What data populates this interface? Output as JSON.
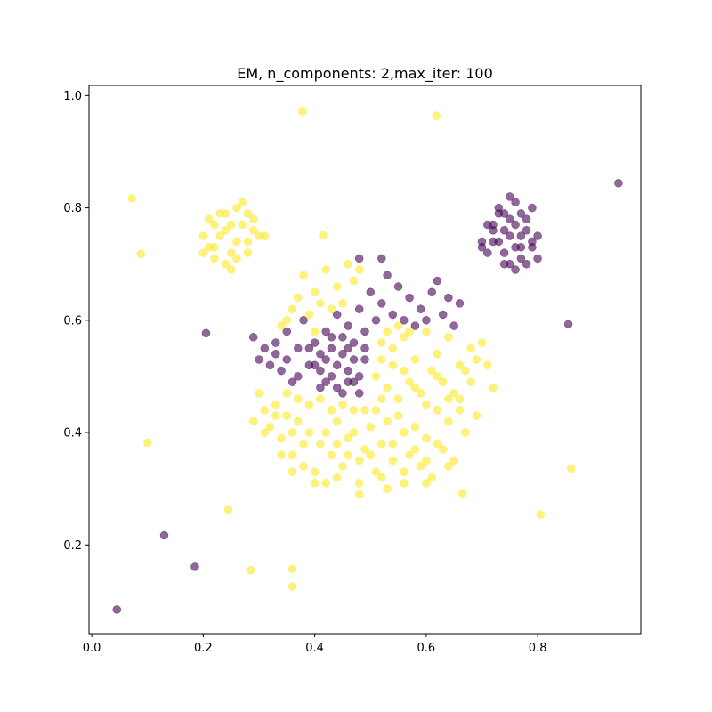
{
  "chart_data": {
    "type": "scatter",
    "title": "EM, n_components: 2,max_iter: 100",
    "xlabel": "",
    "ylabel": "",
    "xlim": [
      -0.005,
      0.985
    ],
    "ylim": [
      0.042,
      1.018
    ],
    "xticks": [
      0.0,
      0.2,
      0.4,
      0.6,
      0.8
    ],
    "xtick_labels": [
      "0.0",
      "0.2",
      "0.4",
      "0.6",
      "0.8"
    ],
    "yticks": [
      0.2,
      0.4,
      0.6,
      0.8,
      1.0
    ],
    "ytick_labels": [
      "0.2",
      "0.4",
      "0.6",
      "0.8",
      "1.0"
    ],
    "grid": false,
    "legend": "none",
    "point_alpha": 0.6,
    "series": [
      {
        "color": "#440154",
        "points": [
          [
            0.045,
            0.085
          ],
          [
            0.13,
            0.217
          ],
          [
            0.185,
            0.161
          ],
          [
            0.205,
            0.577
          ],
          [
            0.855,
            0.593
          ],
          [
            0.945,
            0.844
          ],
          [
            0.72,
            0.77
          ],
          [
            0.73,
            0.8
          ],
          [
            0.75,
            0.82
          ],
          [
            0.77,
            0.79
          ],
          [
            0.78,
            0.76
          ],
          [
            0.79,
            0.74
          ],
          [
            0.8,
            0.75
          ],
          [
            0.76,
            0.73
          ],
          [
            0.74,
            0.72
          ],
          [
            0.72,
            0.74
          ],
          [
            0.7,
            0.74
          ],
          [
            0.75,
            0.7
          ],
          [
            0.77,
            0.71
          ],
          [
            0.79,
            0.73
          ],
          [
            0.78,
            0.7
          ],
          [
            0.73,
            0.79
          ],
          [
            0.74,
            0.76
          ],
          [
            0.76,
            0.77
          ],
          [
            0.75,
            0.78
          ],
          [
            0.77,
            0.75
          ],
          [
            0.71,
            0.72
          ],
          [
            0.73,
            0.74
          ],
          [
            0.76,
            0.69
          ],
          [
            0.74,
            0.7
          ],
          [
            0.79,
            0.8
          ],
          [
            0.72,
            0.76
          ],
          [
            0.78,
            0.78
          ],
          [
            0.75,
            0.75
          ],
          [
            0.74,
            0.79
          ],
          [
            0.8,
            0.71
          ],
          [
            0.7,
            0.73
          ],
          [
            0.76,
            0.81
          ],
          [
            0.71,
            0.77
          ],
          [
            0.77,
            0.73
          ],
          [
            0.29,
            0.57
          ],
          [
            0.3,
            0.53
          ],
          [
            0.31,
            0.55
          ],
          [
            0.32,
            0.52
          ],
          [
            0.33,
            0.56
          ],
          [
            0.34,
            0.51
          ],
          [
            0.35,
            0.58
          ],
          [
            0.36,
            0.49
          ],
          [
            0.37,
            0.55
          ],
          [
            0.38,
            0.6
          ],
          [
            0.39,
            0.52
          ],
          [
            0.4,
            0.56
          ],
          [
            0.41,
            0.48
          ],
          [
            0.42,
            0.58
          ],
          [
            0.43,
            0.5
          ],
          [
            0.44,
            0.61
          ],
          [
            0.45,
            0.47
          ],
          [
            0.46,
            0.59
          ],
          [
            0.47,
            0.49
          ],
          [
            0.48,
            0.62
          ],
          [
            0.49,
            0.53
          ],
          [
            0.5,
            0.65
          ],
          [
            0.51,
            0.6
          ],
          [
            0.52,
            0.63
          ],
          [
            0.53,
            0.68
          ],
          [
            0.54,
            0.61
          ],
          [
            0.55,
            0.66
          ],
          [
            0.56,
            0.6
          ],
          [
            0.57,
            0.64
          ],
          [
            0.58,
            0.59
          ],
          [
            0.59,
            0.62
          ],
          [
            0.6,
            0.6
          ],
          [
            0.61,
            0.65
          ],
          [
            0.62,
            0.67
          ],
          [
            0.63,
            0.61
          ],
          [
            0.64,
            0.64
          ],
          [
            0.65,
            0.59
          ],
          [
            0.66,
            0.63
          ],
          [
            0.52,
            0.71
          ],
          [
            0.48,
            0.71
          ],
          [
            0.4,
            0.52
          ],
          [
            0.41,
            0.54
          ],
          [
            0.42,
            0.53
          ],
          [
            0.43,
            0.55
          ],
          [
            0.44,
            0.52
          ],
          [
            0.45,
            0.54
          ],
          [
            0.46,
            0.51
          ],
          [
            0.47,
            0.53
          ],
          [
            0.48,
            0.5
          ],
          [
            0.49,
            0.55
          ],
          [
            0.42,
            0.49
          ],
          [
            0.44,
            0.48
          ],
          [
            0.46,
            0.49
          ],
          [
            0.48,
            0.47
          ],
          [
            0.45,
            0.57
          ],
          [
            0.43,
            0.57
          ],
          [
            0.41,
            0.51
          ],
          [
            0.39,
            0.55
          ],
          [
            0.37,
            0.5
          ],
          [
            0.35,
            0.53
          ],
          [
            0.33,
            0.54
          ],
          [
            0.47,
            0.56
          ],
          [
            0.49,
            0.58
          ],
          [
            0.46,
            0.55
          ]
        ]
      },
      {
        "color": "#fde725",
        "points": [
          [
            0.072,
            0.817
          ],
          [
            0.088,
            0.718
          ],
          [
            0.1,
            0.382
          ],
          [
            0.245,
            0.263
          ],
          [
            0.285,
            0.155
          ],
          [
            0.36,
            0.157
          ],
          [
            0.36,
            0.126
          ],
          [
            0.378,
            0.972
          ],
          [
            0.415,
            0.751
          ],
          [
            0.618,
            0.964
          ],
          [
            0.805,
            0.254
          ],
          [
            0.86,
            0.336
          ],
          [
            0.665,
            0.292
          ],
          [
            0.2,
            0.75
          ],
          [
            0.21,
            0.78
          ],
          [
            0.22,
            0.73
          ],
          [
            0.23,
            0.79
          ],
          [
            0.24,
            0.76
          ],
          [
            0.25,
            0.72
          ],
          [
            0.26,
            0.8
          ],
          [
            0.27,
            0.77
          ],
          [
            0.28,
            0.74
          ],
          [
            0.29,
            0.78
          ],
          [
            0.3,
            0.75
          ],
          [
            0.22,
            0.71
          ],
          [
            0.24,
            0.7
          ],
          [
            0.26,
            0.71
          ],
          [
            0.28,
            0.72
          ],
          [
            0.23,
            0.75
          ],
          [
            0.25,
            0.77
          ],
          [
            0.27,
            0.81
          ],
          [
            0.21,
            0.73
          ],
          [
            0.29,
            0.76
          ],
          [
            0.24,
            0.79
          ],
          [
            0.26,
            0.74
          ],
          [
            0.22,
            0.77
          ],
          [
            0.28,
            0.79
          ],
          [
            0.25,
            0.69
          ],
          [
            0.31,
            0.75
          ],
          [
            0.2,
            0.72
          ],
          [
            0.3,
            0.47
          ],
          [
            0.31,
            0.44
          ],
          [
            0.32,
            0.41
          ],
          [
            0.33,
            0.45
          ],
          [
            0.34,
            0.39
          ],
          [
            0.35,
            0.43
          ],
          [
            0.36,
            0.36
          ],
          [
            0.37,
            0.42
          ],
          [
            0.38,
            0.34
          ],
          [
            0.39,
            0.4
          ],
          [
            0.4,
            0.33
          ],
          [
            0.41,
            0.38
          ],
          [
            0.42,
            0.31
          ],
          [
            0.43,
            0.36
          ],
          [
            0.44,
            0.42
          ],
          [
            0.45,
            0.34
          ],
          [
            0.46,
            0.39
          ],
          [
            0.47,
            0.44
          ],
          [
            0.48,
            0.29
          ],
          [
            0.49,
            0.37
          ],
          [
            0.5,
            0.41
          ],
          [
            0.51,
            0.33
          ],
          [
            0.52,
            0.46
          ],
          [
            0.53,
            0.3
          ],
          [
            0.54,
            0.38
          ],
          [
            0.55,
            0.43
          ],
          [
            0.56,
            0.31
          ],
          [
            0.57,
            0.36
          ],
          [
            0.58,
            0.41
          ],
          [
            0.59,
            0.34
          ],
          [
            0.6,
            0.39
          ],
          [
            0.61,
            0.32
          ],
          [
            0.62,
            0.44
          ],
          [
            0.63,
            0.37
          ],
          [
            0.64,
            0.42
          ],
          [
            0.65,
            0.35
          ],
          [
            0.66,
            0.46
          ],
          [
            0.67,
            0.4
          ],
          [
            0.68,
            0.49
          ],
          [
            0.69,
            0.43
          ],
          [
            0.7,
            0.56
          ],
          [
            0.71,
            0.52
          ],
          [
            0.72,
            0.48
          ],
          [
            0.68,
            0.55
          ],
          [
            0.66,
            0.52
          ],
          [
            0.64,
            0.57
          ],
          [
            0.62,
            0.54
          ],
          [
            0.6,
            0.58
          ],
          [
            0.58,
            0.53
          ],
          [
            0.56,
            0.57
          ],
          [
            0.54,
            0.52
          ],
          [
            0.52,
            0.56
          ],
          [
            0.51,
            0.5
          ],
          [
            0.53,
            0.48
          ],
          [
            0.55,
            0.46
          ],
          [
            0.57,
            0.49
          ],
          [
            0.59,
            0.47
          ],
          [
            0.61,
            0.51
          ],
          [
            0.63,
            0.49
          ],
          [
            0.65,
            0.47
          ],
          [
            0.67,
            0.51
          ],
          [
            0.69,
            0.53
          ],
          [
            0.52,
            0.53
          ],
          [
            0.54,
            0.55
          ],
          [
            0.56,
            0.51
          ],
          [
            0.58,
            0.48
          ],
          [
            0.6,
            0.45
          ],
          [
            0.62,
            0.5
          ],
          [
            0.64,
            0.46
          ],
          [
            0.66,
            0.44
          ],
          [
            0.53,
            0.58
          ],
          [
            0.55,
            0.59
          ],
          [
            0.57,
            0.58
          ],
          [
            0.51,
            0.44
          ],
          [
            0.53,
            0.42
          ],
          [
            0.49,
            0.44
          ],
          [
            0.47,
            0.4
          ],
          [
            0.45,
            0.45
          ],
          [
            0.43,
            0.44
          ],
          [
            0.41,
            0.46
          ],
          [
            0.39,
            0.45
          ],
          [
            0.37,
            0.46
          ],
          [
            0.35,
            0.47
          ],
          [
            0.33,
            0.43
          ],
          [
            0.31,
            0.4
          ],
          [
            0.29,
            0.42
          ],
          [
            0.36,
            0.4
          ],
          [
            0.38,
            0.38
          ],
          [
            0.42,
            0.4
          ],
          [
            0.44,
            0.38
          ],
          [
            0.46,
            0.36
          ],
          [
            0.48,
            0.35
          ],
          [
            0.5,
            0.36
          ],
          [
            0.52,
            0.38
          ],
          [
            0.54,
            0.35
          ],
          [
            0.56,
            0.4
          ],
          [
            0.58,
            0.37
          ],
          [
            0.6,
            0.35
          ],
          [
            0.62,
            0.38
          ],
          [
            0.34,
            0.36
          ],
          [
            0.36,
            0.33
          ],
          [
            0.4,
            0.31
          ],
          [
            0.44,
            0.32
          ],
          [
            0.48,
            0.31
          ],
          [
            0.52,
            0.32
          ],
          [
            0.56,
            0.33
          ],
          [
            0.6,
            0.31
          ],
          [
            0.64,
            0.34
          ],
          [
            0.38,
            0.68
          ],
          [
            0.4,
            0.65
          ],
          [
            0.42,
            0.69
          ],
          [
            0.44,
            0.66
          ],
          [
            0.46,
            0.7
          ],
          [
            0.41,
            0.63
          ],
          [
            0.43,
            0.62
          ],
          [
            0.39,
            0.61
          ],
          [
            0.37,
            0.64
          ],
          [
            0.35,
            0.6
          ],
          [
            0.45,
            0.63
          ],
          [
            0.47,
            0.67
          ],
          [
            0.36,
            0.62
          ],
          [
            0.34,
            0.59
          ],
          [
            0.48,
            0.69
          ],
          [
            0.4,
            0.58
          ]
        ]
      }
    ]
  }
}
